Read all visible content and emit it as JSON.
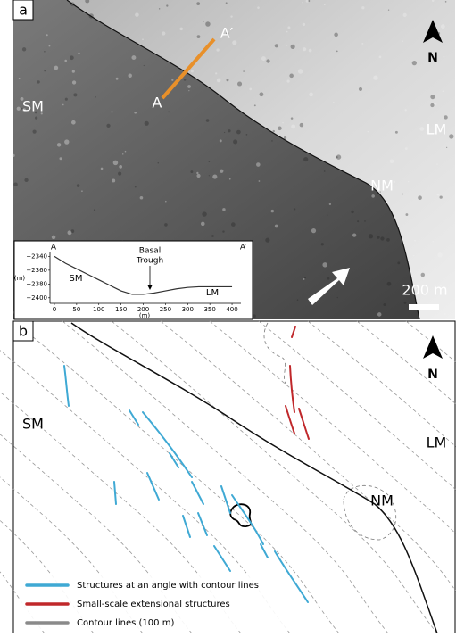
{
  "panel_a": {
    "label": "a",
    "labels": {
      "sm": "SM",
      "lm": "LM",
      "nm": "NM",
      "a": "A",
      "a_prime": "A′"
    },
    "north": "N",
    "scale_bar": "200 m",
    "profile": {
      "start": "A",
      "end": "A′",
      "ylabel": "(m)",
      "xlabel": "(m)",
      "basal_trough": [
        "Basal",
        "Trough"
      ],
      "sm": "SM",
      "lm": "LM",
      "x": [
        0,
        25,
        50,
        75,
        100,
        125,
        150,
        175,
        200,
        225,
        250,
        275,
        300,
        325,
        350,
        375,
        400
      ],
      "y": [
        -2340,
        -2350,
        -2358,
        -2366,
        -2374,
        -2382,
        -2390,
        -2395,
        -2395,
        -2393,
        -2390,
        -2387,
        -2385,
        -2384,
        -2384,
        -2384,
        -2384
      ],
      "xlim": [
        -10,
        420
      ],
      "ylim": [
        -2408,
        -2333
      ],
      "xticks": [
        0,
        50,
        100,
        150,
        200,
        250,
        300,
        350,
        400
      ],
      "yticks": [
        {
          "value": -2340,
          "label": "−2340"
        },
        {
          "value": -2360,
          "label": "−2360"
        },
        {
          "value": -2380,
          "label": "−2380"
        },
        {
          "value": -2400,
          "label": "−2400"
        }
      ]
    }
  },
  "panel_b": {
    "label": "b",
    "labels": {
      "sm": "SM",
      "lm": "LM",
      "nm": "NM"
    },
    "north": "N",
    "legend": [
      {
        "text": "Structures at an angle with contour lines",
        "color": "#3fa9d4"
      },
      {
        "text": "Small-scale extensional structures",
        "color": "#c0282b"
      },
      {
        "text": "Contour lines (100 m)",
        "color": "#8a8a8a"
      }
    ]
  }
}
